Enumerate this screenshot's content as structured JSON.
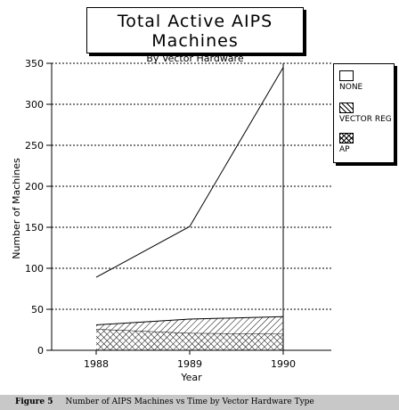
{
  "title": "Total Active AIPS Machines",
  "subtitle": "By Vector Hardware",
  "caption": {
    "figure_label": "Figure 5",
    "text": "Number of AIPS Machines vs Time by Vector Hardware Type"
  },
  "chart_data": {
    "type": "area",
    "x": [
      "1988",
      "1989",
      "1990"
    ],
    "xlabel": "Year",
    "ylabel": "Number of Machines",
    "ylim": [
      0,
      350
    ],
    "yticks": [
      "350",
      "300",
      "250",
      "200",
      "150",
      "100",
      "50",
      "0"
    ],
    "stacked": true,
    "grid": true,
    "legend_position": "right",
    "series": [
      {
        "name": "AP",
        "values": [
          26,
          21,
          20
        ],
        "pattern": "crosshatch"
      },
      {
        "name": "VECTOR REG",
        "values": [
          5,
          17,
          21
        ],
        "pattern": "diagonal"
      },
      {
        "name": "NONE",
        "values": [
          58,
          113,
          304
        ],
        "pattern": "none"
      }
    ],
    "legend": [
      "NONE",
      "VECTOR REG",
      "AP"
    ]
  }
}
